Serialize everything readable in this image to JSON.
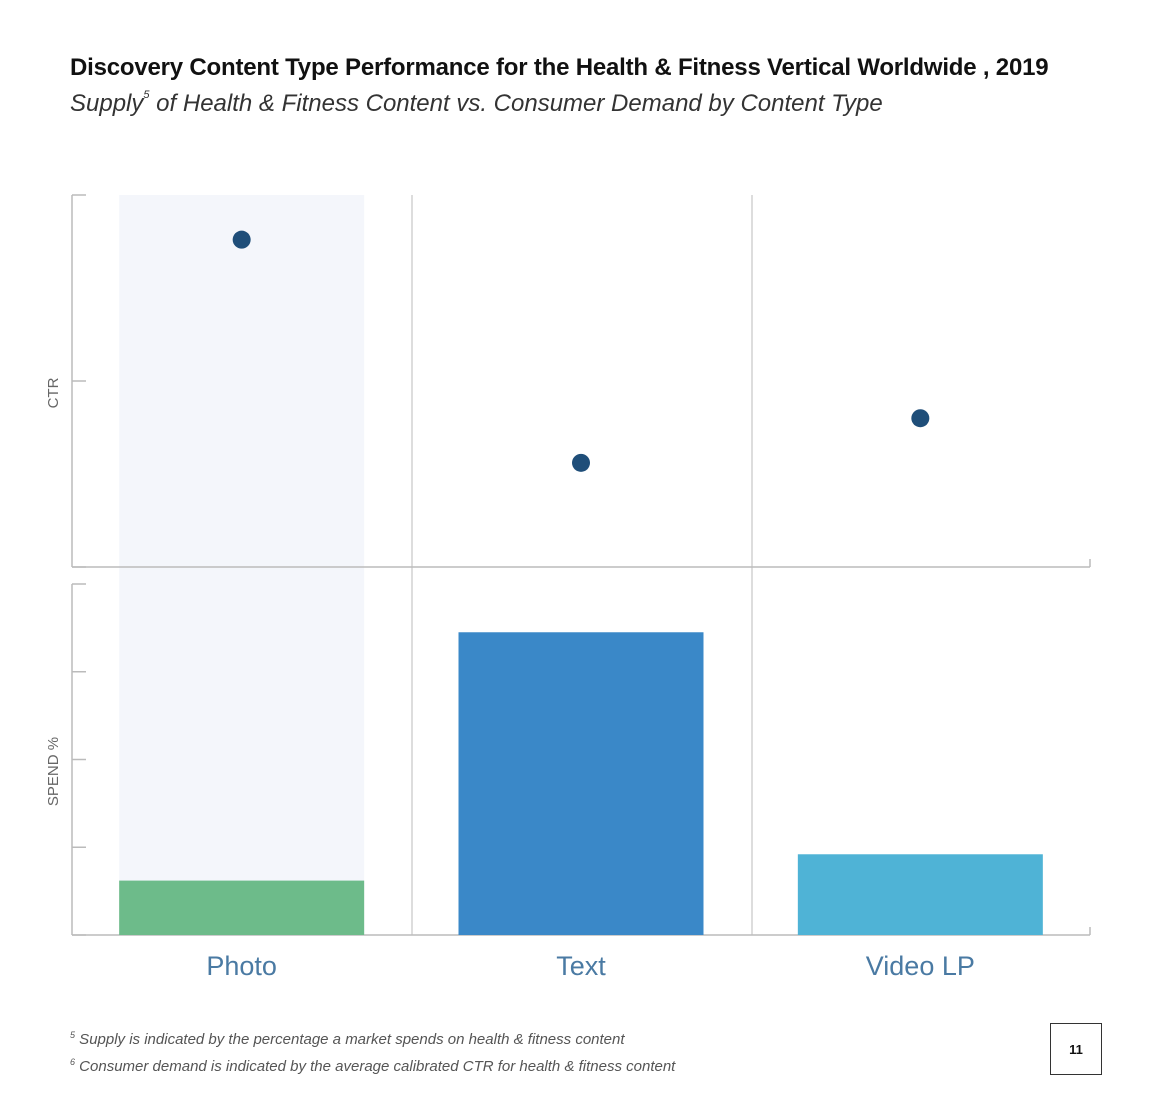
{
  "header": {
    "title": "Discovery Content Type Performance for the Health & Fitness Vertical Worldwide , 2019",
    "subtitle_before": "Supply",
    "subtitle_sup": "5",
    "subtitle_after": " of Health & Fitness Content vs. Consumer Demand  by Content Type"
  },
  "chart_data": {
    "type": "bar",
    "categories": [
      "Photo",
      "Text",
      "Video LP"
    ],
    "highlight_category": "Photo",
    "panels": [
      {
        "name": "ctr",
        "type": "scatter",
        "ylabel": "CTR",
        "ylim": [
          0,
          2
        ],
        "values": [
          1.76,
          0.56,
          0.8
        ],
        "color": "#1f4e79"
      },
      {
        "name": "spend",
        "type": "bar",
        "ylabel": "SPEND %",
        "ylim": [
          0,
          4
        ],
        "values": [
          0.62,
          3.45,
          0.92
        ],
        "colors": [
          "#6dbb8a",
          "#3a88c8",
          "#4fb3d6"
        ]
      }
    ],
    "grid": false
  },
  "footnotes": [
    {
      "sup": "5",
      "text": " Supply is indicated by the percentage a market spends on health & fitness content"
    },
    {
      "sup": "6",
      "text": " Consumer demand is indicated by the average calibrated CTR for health & fitness content"
    }
  ],
  "page_number": "11",
  "colors": {
    "highlight_band": "#f4f6fb",
    "axis": "#bbbbbb",
    "category_label": "#4a7aa3"
  }
}
